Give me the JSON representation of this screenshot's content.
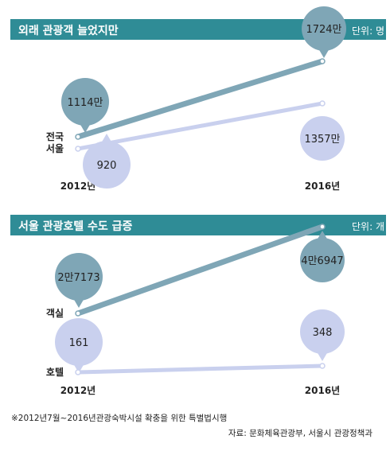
{
  "chart_data": [
    {
      "type": "line",
      "title": "외래 관광객 늘었지만",
      "unit_label": "단위: 명",
      "categories": [
        "2012년",
        "2016년"
      ],
      "series": [
        {
          "name": "전국",
          "values": [
            11140000,
            17240000
          ],
          "labels": [
            "1114만",
            "1724만"
          ],
          "color": "#7fa6b6"
        },
        {
          "name": "서울",
          "values": [
            9200000,
            13570000
          ],
          "labels": [
            "920",
            "1357만"
          ],
          "color": "#c9d0ee"
        }
      ],
      "ylim": [
        0,
        18000000
      ]
    },
    {
      "type": "line",
      "title": "서울 관광호텔 수도 급증",
      "unit_label": "단위: 개",
      "categories": [
        "2012년",
        "2016년"
      ],
      "series": [
        {
          "name": "객실",
          "values": [
            27173,
            46947
          ],
          "labels": [
            "2만7173",
            "4만6947"
          ],
          "color": "#7fa6b6"
        },
        {
          "name": "호텔",
          "values": [
            161,
            348
          ],
          "labels": [
            "161",
            "348"
          ],
          "color": "#c9d0ee"
        }
      ],
      "ylim": [
        0,
        47000
      ]
    }
  ],
  "footnote": "※2012년7월~2016년관광숙박시설 확충을 위한 특별법시행",
  "source": "자료: 문화체육관광부, 서울시 관광정책과"
}
